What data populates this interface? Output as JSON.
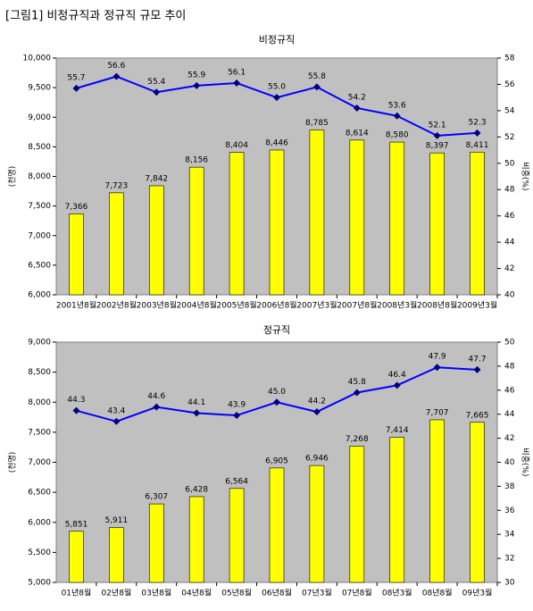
{
  "header": {
    "title": "[그림1] 비정규직과 정규직 규모 추이"
  },
  "chart_data": [
    {
      "type": "combo",
      "title": "비정규직",
      "ylabel": "(천명)",
      "y2label": "비중(%)",
      "categories": [
        "2001년8월",
        "2002년8월",
        "2003년8월",
        "2004년8월",
        "2005년8월",
        "2006년8월",
        "2007년3월",
        "2007년8월",
        "2008년3월",
        "2008년8월",
        "2009년3월"
      ],
      "ylim": [
        6000,
        10000
      ],
      "yticks": [
        {
          "value": 6000,
          "label": "6,000"
        },
        {
          "value": 6500,
          "label": "6,500"
        },
        {
          "value": 7000,
          "label": "7,000"
        },
        {
          "value": 7500,
          "label": "7,500"
        },
        {
          "value": 8000,
          "label": "8,000"
        },
        {
          "value": 8500,
          "label": "8,500"
        },
        {
          "value": 9000,
          "label": "9,000"
        },
        {
          "value": 9500,
          "label": "9,500"
        },
        {
          "value": 10000,
          "label": "10,000"
        }
      ],
      "y2lim": [
        40,
        58
      ],
      "y2ticks": [
        40,
        42,
        44,
        46,
        48,
        50,
        52,
        54,
        56,
        58
      ],
      "series": [
        {
          "type": "bar",
          "color": "#ffff00",
          "values": [
            7366,
            7723,
            7842,
            8156,
            8404,
            8446,
            8785,
            8614,
            8580,
            8397,
            8411
          ],
          "value_labels": [
            "7,366",
            "7,723",
            "7,842",
            "8,156",
            "8,404",
            "8,446",
            "8,785",
            "8,614",
            "8,580",
            "8,397",
            "8,411"
          ]
        },
        {
          "type": "line",
          "axis": "y2",
          "color": "#0000ff",
          "values": [
            55.7,
            56.6,
            55.4,
            55.9,
            56.1,
            55.0,
            55.8,
            54.2,
            53.6,
            52.1,
            52.3
          ],
          "value_labels": [
            "55.7",
            "56.6",
            "55.4",
            "55.9",
            "56.1",
            "55.0",
            "55.8",
            "54.2",
            "53.6",
            "52.1",
            "52.3"
          ]
        }
      ]
    },
    {
      "type": "combo",
      "title": "정규직",
      "ylabel": "(천명)",
      "y2label": "비중(%)",
      "categories": [
        "01년8월",
        "02년8월",
        "03년8월",
        "04년8월",
        "05년8월",
        "06년8월",
        "07년3월",
        "07년8월",
        "08년3월",
        "08년8월",
        "09년3월"
      ],
      "ylim": [
        5000,
        9000
      ],
      "yticks": [
        {
          "value": 5000,
          "label": "5,000"
        },
        {
          "value": 5500,
          "label": "5,500"
        },
        {
          "value": 6000,
          "label": "6,000"
        },
        {
          "value": 6500,
          "label": "6,500"
        },
        {
          "value": 7000,
          "label": "7,000"
        },
        {
          "value": 7500,
          "label": "7,500"
        },
        {
          "value": 8000,
          "label": "8,000"
        },
        {
          "value": 8500,
          "label": "8,500"
        },
        {
          "value": 9000,
          "label": "9,000"
        }
      ],
      "y2lim": [
        30,
        50
      ],
      "y2ticks": [
        30,
        32,
        34,
        36,
        38,
        40,
        42,
        44,
        46,
        48,
        50
      ],
      "series": [
        {
          "type": "bar",
          "color": "#ffff00",
          "values": [
            5851,
            5911,
            6307,
            6428,
            6564,
            6905,
            6946,
            7268,
            7414,
            7707,
            7665
          ],
          "value_labels": [
            "5,851",
            "5,911",
            "6,307",
            "6,428",
            "6,564",
            "6,905",
            "6,946",
            "7,268",
            "7,414",
            "7,707",
            "7,665"
          ]
        },
        {
          "type": "line",
          "axis": "y2",
          "color": "#0000ff",
          "values": [
            44.3,
            43.4,
            44.6,
            44.1,
            43.9,
            45.0,
            44.2,
            45.8,
            46.4,
            47.9,
            47.7
          ],
          "value_labels": [
            "44.3",
            "43.4",
            "44.6",
            "44.1",
            "43.9",
            "45.0",
            "44.2",
            "45.8",
            "46.4",
            "47.9",
            "47.7"
          ]
        }
      ]
    }
  ]
}
